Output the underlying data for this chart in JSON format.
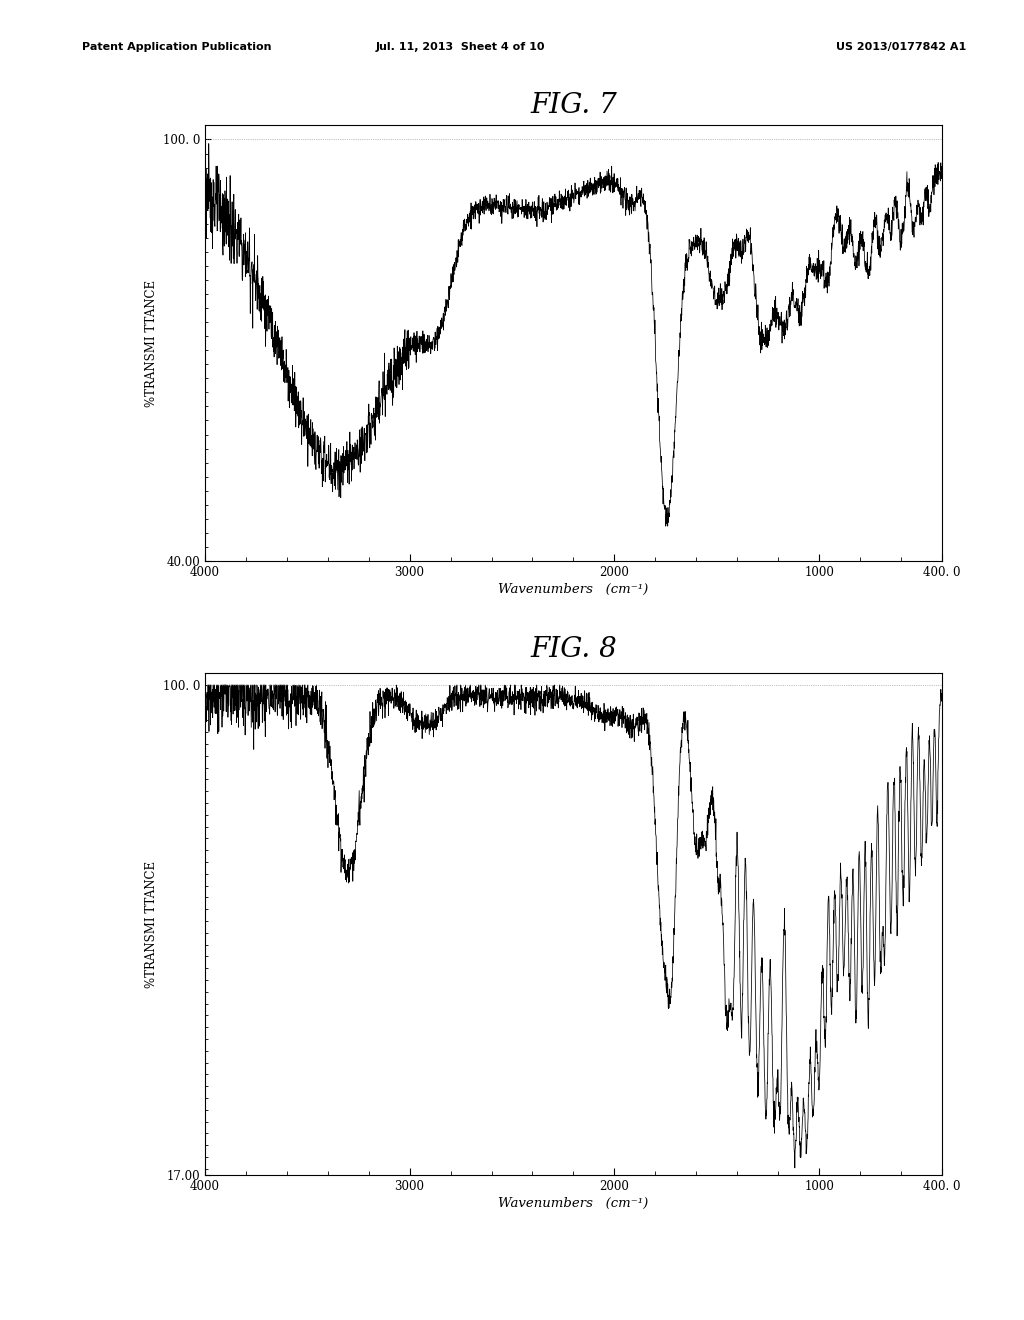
{
  "background_color": "#ffffff",
  "header_left": "Patent Application Publication",
  "header_mid": "Jul. 11, 2013  Sheet 4 of 10",
  "header_right": "US 2013/0177842 A1",
  "fig7": {
    "title": "FIG. 7",
    "xlabel": "Wavenumbers   (cm⁻¹)",
    "ylabel": "%TRANSMI TTANCE",
    "xlim_left": 4000,
    "xlim_right": 400,
    "ylim_bottom": 40.0,
    "ylim_top": 100.0,
    "ytick_min_label": "40.00",
    "ytick_max_label": "100. 0",
    "xtick_labels": [
      "4000",
      "3000",
      "2000",
      "1000",
      "400. 0"
    ],
    "xtick_positions": [
      4000,
      3000,
      2000,
      1000,
      400
    ]
  },
  "fig8": {
    "title": "FIG. 8",
    "xlabel": "Wavenumbers   (cm⁻¹)",
    "ylabel": "%TRANSMI TTANCE",
    "xlim_left": 4000,
    "xlim_right": 400,
    "ylim_bottom": 17.0,
    "ylim_top": 100.0,
    "ytick_min_label": "17.00",
    "ytick_max_label": "100. 0",
    "xtick_labels": [
      "4000",
      "3000",
      "2000",
      "1000",
      "400. 0"
    ],
    "xtick_positions": [
      4000,
      3000,
      2000,
      1000,
      400
    ]
  }
}
